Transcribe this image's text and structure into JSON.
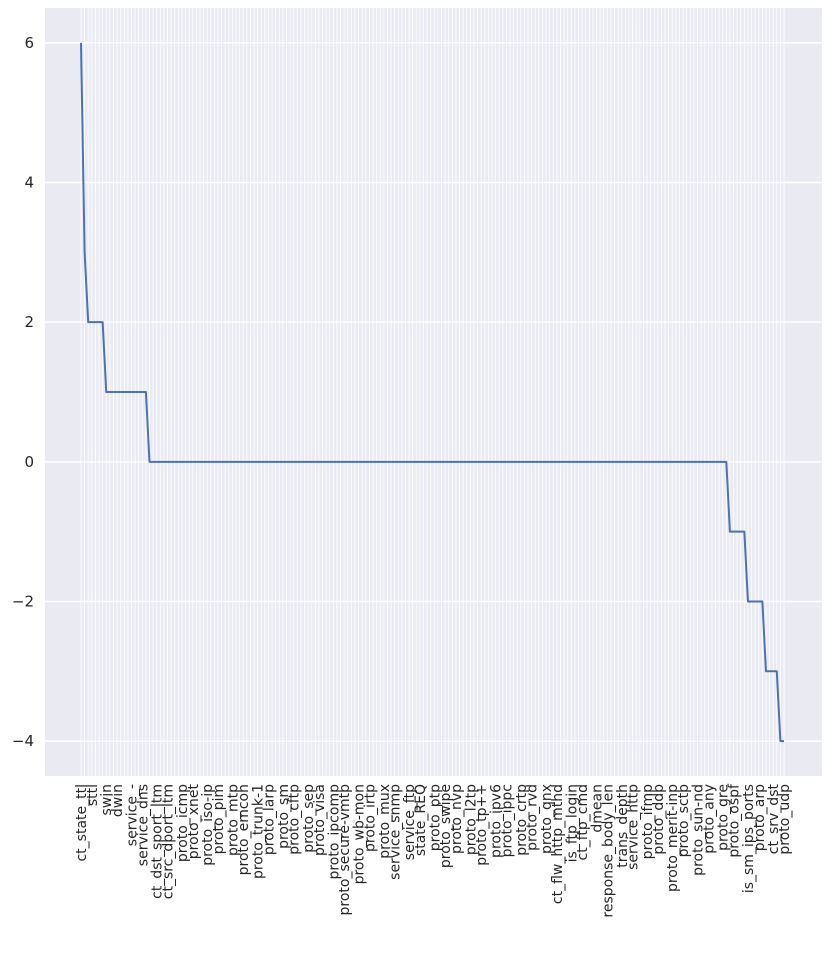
{
  "chart_data": {
    "type": "line",
    "style": "seaborn-darkgrid",
    "colors": {
      "background": "#eaeaf2",
      "grid": "#ffffff",
      "line": "#4c72b0",
      "text": "#262626"
    },
    "grid": true,
    "legend": "none",
    "title": "",
    "xlabel": "",
    "ylabel": "",
    "ylim": [
      -4.5,
      6.5
    ],
    "yticks": [
      -4,
      -2,
      0,
      2,
      4,
      6
    ],
    "ytick_labels": [
      "−4",
      "−2",
      "0",
      "2",
      "4",
      "6"
    ],
    "n_points": 196,
    "step_runs": [
      {
        "value": 6,
        "count": 1
      },
      {
        "value": 3,
        "count": 1
      },
      {
        "value": 2,
        "count": 5
      },
      {
        "value": 1,
        "count": 12
      },
      {
        "value": 0,
        "count": 161
      },
      {
        "value": -1,
        "count": 5
      },
      {
        "value": -2,
        "count": 5
      },
      {
        "value": -3,
        "count": 4
      },
      {
        "value": -4,
        "count": 2
      }
    ],
    "visible_categories": [
      "ct_state_ttl",
      "sttl",
      "swin",
      "dwin",
      "service_-",
      "service_dns",
      "ct_dst_sport_ltm",
      "ct_src_dport_ltm",
      "proto_icmp",
      "proto_xnet",
      "proto_iso-ip",
      "proto_pim",
      "proto_mtp",
      "proto_emcon",
      "proto_trunk-1",
      "proto_larp",
      "proto_sm",
      "proto_cftp",
      "proto_sep",
      "proto_visa",
      "proto_ipcomp",
      "proto_secure-vmtp",
      "proto_wb-mon",
      "proto_irtp",
      "proto_mux",
      "service_snmp",
      "service_ftp",
      "state_REQ",
      "proto_ptp",
      "proto_swipe",
      "proto_nvp",
      "proto_l2tp",
      "proto_tp++",
      "proto_ipv6",
      "proto_ippc",
      "proto_crtp",
      "proto_rvd",
      "proto_qnx",
      "ct_flw_http_mthd",
      "is_ftp_login",
      "ct_ftp_cmd",
      "dmean",
      "response_body_len",
      "trans_depth",
      "service_http",
      "proto_ifmp",
      "proto_ddp",
      "proto_merit-inp",
      "proto_sctp",
      "proto_sun-nd",
      "proto_any",
      "proto_gre",
      "proto_ospf",
      "is_sm_ips_ports",
      "proto_arp",
      "ct_srv_dst",
      "proto_udp"
    ]
  }
}
